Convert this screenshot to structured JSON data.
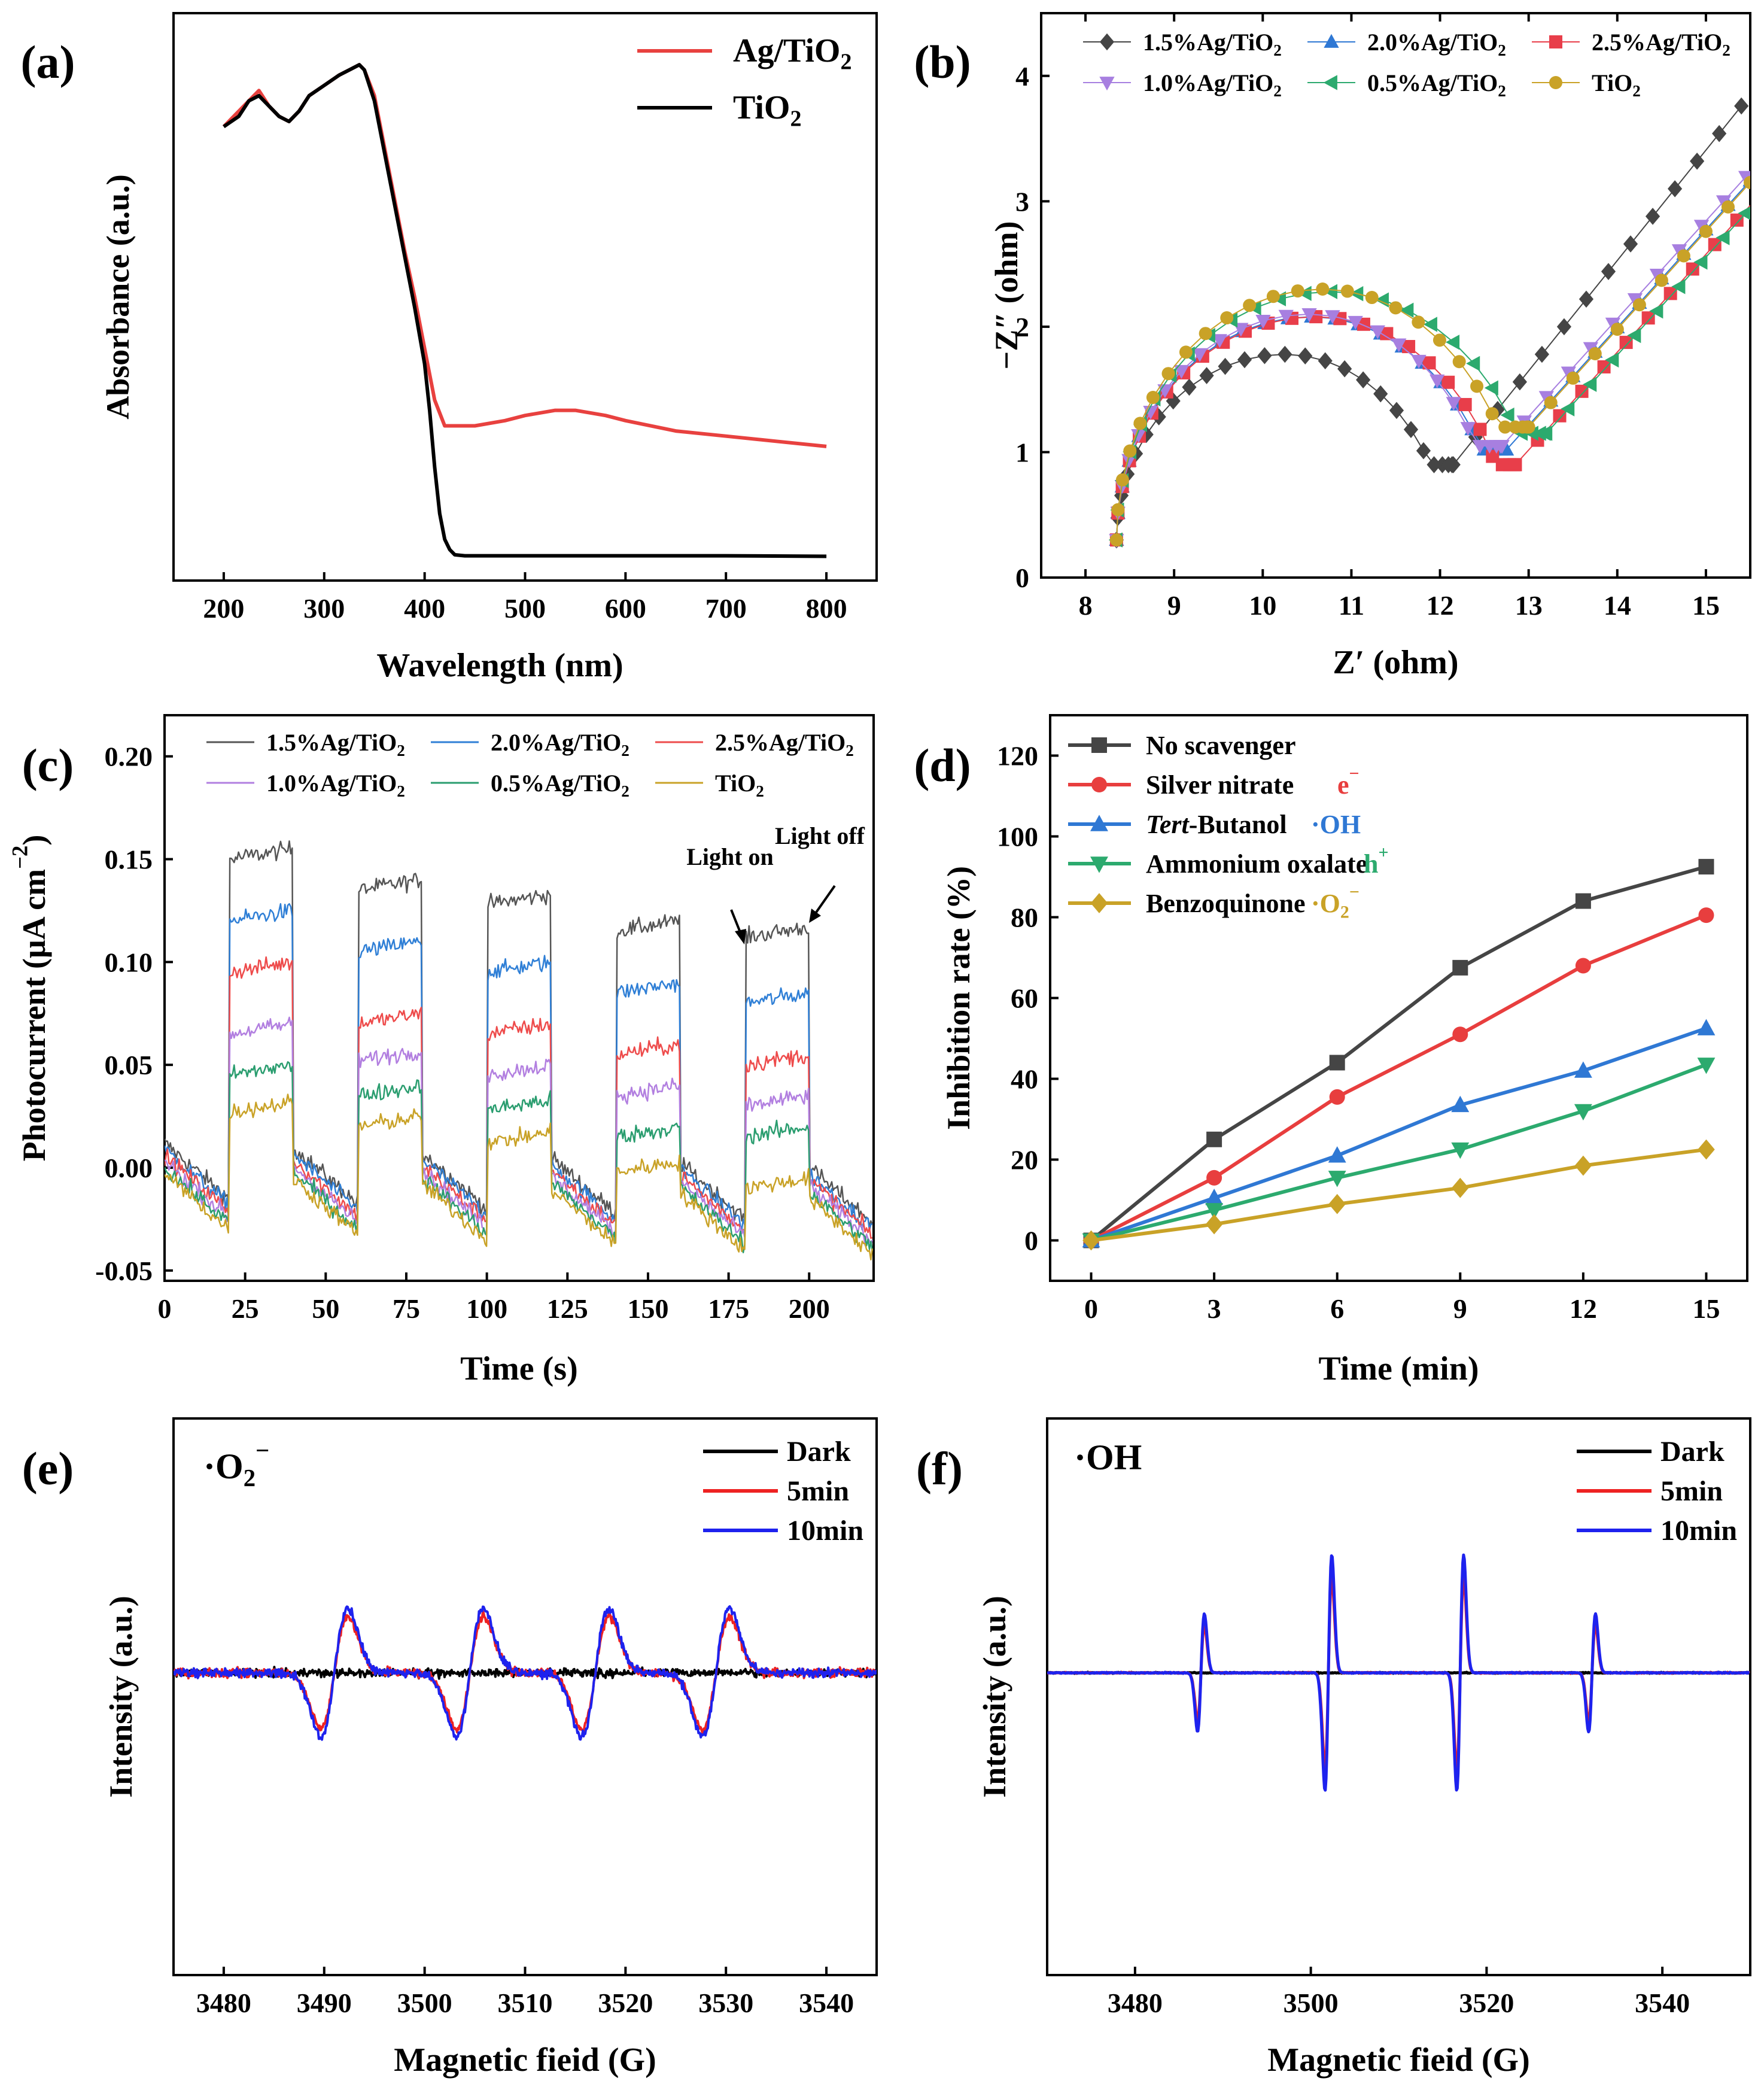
{
  "chart_data": [
    {
      "panel": "(a)",
      "type": "line",
      "xlabel": "Wavelength (nm)",
      "ylabel": "Absorbance (a.u.)",
      "xlim": [
        150,
        850
      ],
      "ylim": [
        0,
        1.1
      ],
      "xticks": [
        "200",
        "300",
        "400",
        "500",
        "600",
        "700",
        "800"
      ],
      "legend_position": "top-right",
      "series": [
        {
          "name": "Ag/TiO₂",
          "color": "#e8413f",
          "x": [
            200,
            215,
            225,
            235,
            245,
            255,
            265,
            275,
            285,
            300,
            315,
            325,
            335,
            340,
            350,
            360,
            370,
            380,
            390,
            400,
            410,
            420,
            430,
            450,
            480,
            500,
            530,
            550,
            580,
            600,
            650,
            700,
            750,
            800
          ],
          "y": [
            0.88,
            0.91,
            0.93,
            0.95,
            0.92,
            0.9,
            0.89,
            0.91,
            0.94,
            0.96,
            0.98,
            0.99,
            1.0,
            0.99,
            0.94,
            0.84,
            0.74,
            0.64,
            0.55,
            0.45,
            0.35,
            0.3,
            0.3,
            0.3,
            0.31,
            0.32,
            0.33,
            0.33,
            0.32,
            0.31,
            0.29,
            0.28,
            0.27,
            0.26
          ]
        },
        {
          "name": "TiO₂",
          "color": "#000000",
          "x": [
            200,
            215,
            225,
            235,
            245,
            255,
            265,
            275,
            285,
            300,
            315,
            325,
            335,
            340,
            350,
            360,
            370,
            380,
            390,
            400,
            405,
            410,
            415,
            420,
            425,
            430,
            440,
            450,
            480,
            500,
            600,
            700,
            800
          ],
          "y": [
            0.88,
            0.9,
            0.93,
            0.94,
            0.92,
            0.9,
            0.89,
            0.91,
            0.94,
            0.96,
            0.98,
            0.99,
            1.0,
            0.99,
            0.93,
            0.83,
            0.73,
            0.63,
            0.53,
            0.42,
            0.33,
            0.22,
            0.13,
            0.08,
            0.06,
            0.05,
            0.048,
            0.048,
            0.048,
            0.048,
            0.048,
            0.048,
            0.047
          ]
        }
      ]
    },
    {
      "panel": "(b)",
      "type": "scatter",
      "xlabel": "Z′ (ohm)",
      "ylabel": "−Z″ (ohm)",
      "xlim": [
        7.5,
        15.5
      ],
      "ylim": [
        0,
        4.5
      ],
      "xticks": [
        "8",
        "9",
        "10",
        "11",
        "12",
        "13",
        "14",
        "15"
      ],
      "yticks": [
        "0",
        "1",
        "2",
        "3",
        "4"
      ],
      "legend_position": "top",
      "series": [
        {
          "name": "1.5%Ag/TiO₂",
          "color": "#454545",
          "marker": "diamond",
          "x0": 8.35,
          "xmin": 12.15,
          "peak": 1.78,
          "valley": 0.9
        },
        {
          "name": "2.0%Ag/TiO₂",
          "color": "#2f78d4",
          "marker": "triangle-up",
          "x0": 8.35,
          "xmin": 12.75,
          "peak": 2.08,
          "valley": 1.02
        },
        {
          "name": "2.5%Ag/TiO₂",
          "color": "#e83e4a",
          "marker": "square",
          "x0": 8.35,
          "xmin": 12.85,
          "peak": 2.08,
          "valley": 0.9
        },
        {
          "name": "1.0%Ag/TiO₂",
          "color": "#a77fe0",
          "marker": "triangle-down",
          "x0": 8.35,
          "xmin": 12.7,
          "peak": 2.1,
          "valley": 1.05
        },
        {
          "name": "0.5%Ag/TiO₂",
          "color": "#2caa6e",
          "marker": "triangle-left",
          "x0": 8.35,
          "xmin": 13.2,
          "peak": 2.28,
          "valley": 1.15
        },
        {
          "name": "TiO₂",
          "color": "#c9a227",
          "marker": "circle",
          "x0": 8.35,
          "xmin": 13.0,
          "peak": 2.3,
          "valley": 1.2
        }
      ]
    },
    {
      "panel": "(c)",
      "type": "line",
      "xlabel": "Time (s)",
      "ylabel": "Photocurrent (μA cm⁻²)",
      "xlim": [
        0,
        220
      ],
      "ylim": [
        -0.055,
        0.22
      ],
      "xticks": [
        "0",
        "25",
        "50",
        "75",
        "100",
        "125",
        "150",
        "175",
        "200"
      ],
      "yticks": [
        "-0.05",
        "0.00",
        "0.05",
        "0.10",
        "0.15",
        "0.20"
      ],
      "on_intervals": [
        [
          20,
          40
        ],
        [
          60,
          80
        ],
        [
          100,
          120
        ],
        [
          140,
          160
        ],
        [
          180,
          200
        ]
      ],
      "annotations": [
        "Light on",
        "Light off"
      ],
      "legend_position": "top",
      "series": [
        {
          "name": "1.5%Ag/TiO₂",
          "color": "#555555",
          "on_levels": [
            0.15,
            0.135,
            0.128,
            0.115,
            0.112
          ]
        },
        {
          "name": "2.0%Ag/TiO₂",
          "color": "#2f7fd6",
          "on_levels": [
            0.12,
            0.105,
            0.095,
            0.085,
            0.08
          ]
        },
        {
          "name": "2.5%Ag/TiO₂",
          "color": "#ee4b4b",
          "on_levels": [
            0.095,
            0.07,
            0.065,
            0.055,
            0.05
          ]
        },
        {
          "name": "1.0%Ag/TiO₂",
          "color": "#b27fe0",
          "on_levels": [
            0.065,
            0.052,
            0.045,
            0.035,
            0.03
          ]
        },
        {
          "name": "0.5%Ag/TiO₂",
          "color": "#2a9d6f",
          "on_levels": [
            0.045,
            0.035,
            0.028,
            0.015,
            0.015
          ]
        },
        {
          "name": "TiO₂",
          "color": "#c9a227",
          "on_levels": [
            0.027,
            0.02,
            0.012,
            -0.002,
            -0.01
          ]
        }
      ]
    },
    {
      "panel": "(d)",
      "type": "line",
      "xlabel": "Time (min)",
      "ylabel": "Inhibition rate (%)",
      "xlim": [
        -1,
        16
      ],
      "ylim": [
        -10,
        130
      ],
      "xticks": [
        "0",
        "3",
        "6",
        "9",
        "12",
        "15"
      ],
      "yticks": [
        "0",
        "20",
        "40",
        "60",
        "80",
        "100",
        "120"
      ],
      "categories": [
        0,
        3,
        6,
        9,
        12,
        15
      ],
      "legend_position": "top-left",
      "series": [
        {
          "name": "No scavenger",
          "species": "",
          "color": "#454545",
          "marker": "square",
          "values": [
            0,
            25,
            44,
            67.5,
            84,
            92.5
          ]
        },
        {
          "name": "Silver nitrate",
          "species": "e⁻",
          "color": "#e83e3e",
          "marker": "circle",
          "values": [
            0,
            15.5,
            35.5,
            51,
            68,
            80.5
          ]
        },
        {
          "name": "Tert-Butanol",
          "species": "·OH",
          "color": "#2f78d4",
          "marker": "triangle-up",
          "values": [
            0,
            10.5,
            21,
            33.5,
            42,
            52.5
          ]
        },
        {
          "name": "Ammonium oxalate",
          "species": "h⁺",
          "color": "#2caa6e",
          "marker": "triangle-down",
          "values": [
            0,
            7.5,
            15.5,
            22.5,
            32,
            43.5
          ]
        },
        {
          "name": "Benzoquinone",
          "species": "·O₂⁻",
          "color": "#c9a227",
          "marker": "diamond",
          "values": [
            0,
            4,
            9,
            13,
            18.5,
            22.5
          ]
        }
      ]
    },
    {
      "panel": "(e)",
      "type": "line",
      "title": "·O₂⁻",
      "xlabel": "Magnetic fieid (G)",
      "ylabel": "Intensity (a.u.)",
      "xlim": [
        3475,
        3545
      ],
      "xticks": [
        "3480",
        "3490",
        "3500",
        "3510",
        "3520",
        "3530",
        "3540"
      ],
      "legend_position": "top-right",
      "peak_centers": [
        3491.0,
        3504.5,
        3517.0,
        3529.0
      ],
      "series": [
        {
          "name": "Dark",
          "color": "#000000",
          "amplitude": 0.0
        },
        {
          "name": "5min",
          "color": "#ee2222",
          "amplitude": 0.88
        },
        {
          "name": "10min",
          "color": "#1e22ee",
          "amplitude": 1.0
        }
      ]
    },
    {
      "panel": "(f)",
      "type": "line",
      "title": "·OH",
      "xlabel": "Magnetic fieid (G)",
      "ylabel": "Intensity (a.u.)",
      "xlim": [
        3470,
        3550
      ],
      "xticks": [
        "3480",
        "3500",
        "3520",
        "3540"
      ],
      "legend_position": "top-right",
      "peak_centers": [
        3487.5,
        3502.0,
        3517.0,
        3532.0
      ],
      "peak_ratio": [
        1,
        2,
        2,
        1
      ],
      "series": [
        {
          "name": "Dark",
          "color": "#000000",
          "amplitude": 0.0
        },
        {
          "name": "5min",
          "color": "#ee2222",
          "amplitude": 0.82
        },
        {
          "name": "10min",
          "color": "#1e22ee",
          "amplitude": 1.0
        }
      ]
    }
  ]
}
